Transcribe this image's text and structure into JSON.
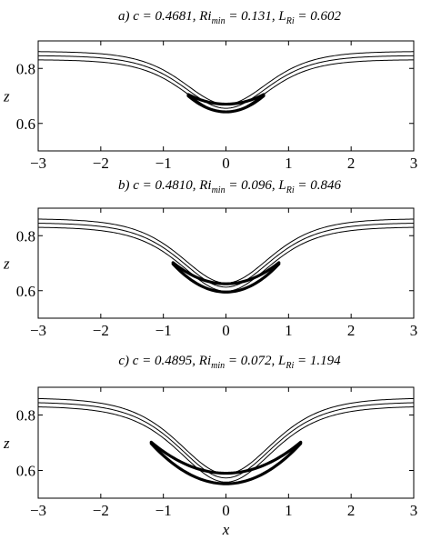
{
  "chart_data": [
    {
      "type": "line",
      "title_parts": [
        "a) c = 0.4681,  Ri",
        "min",
        " = 0.131,  L",
        "Ri",
        " = 0.602"
      ],
      "xlabel": "",
      "ylabel": "z",
      "xlim": [
        -3,
        3
      ],
      "ylim": [
        0.5,
        0.9
      ],
      "xticks": [
        "−3",
        "−2",
        "−1",
        "0",
        "1",
        "2",
        "3"
      ],
      "yticks": [
        "0.6",
        "0.8"
      ],
      "ytick_values": [
        0.6,
        0.8
      ],
      "params": {
        "c": 0.4681,
        "Ri_min": 0.131,
        "L_Ri": 0.602
      },
      "series": [
        {
          "shape": "trough",
          "far": 0.862,
          "min": 0.67,
          "width": 0.9
        },
        {
          "shape": "trough",
          "far": 0.847,
          "min": 0.655,
          "width": 0.9
        },
        {
          "shape": "trough",
          "far": 0.832,
          "min": 0.64,
          "width": 0.9
        },
        {
          "shape": "bold",
          "min": 0.67,
          "edge": 0.705
        },
        {
          "shape": "bold",
          "min": 0.642,
          "edge": 0.7
        }
      ]
    },
    {
      "type": "line",
      "title_parts": [
        "b) c = 0.4810,  Ri",
        "min",
        " = 0.096,  L",
        "Ri",
        " = 0.846"
      ],
      "xlabel": "",
      "ylabel": "z",
      "xlim": [
        -3,
        3
      ],
      "ylim": [
        0.5,
        0.9
      ],
      "xticks": [
        "−3",
        "−2",
        "−1",
        "0",
        "1",
        "2",
        "3"
      ],
      "yticks": [
        "0.6",
        "0.8"
      ],
      "ytick_values": [
        0.6,
        0.8
      ],
      "params": {
        "c": 0.481,
        "Ri_min": 0.096,
        "L_Ri": 0.846
      },
      "series": [
        {
          "shape": "trough",
          "far": 0.862,
          "min": 0.628,
          "width": 0.95
        },
        {
          "shape": "trough",
          "far": 0.847,
          "min": 0.613,
          "width": 0.95
        },
        {
          "shape": "trough",
          "far": 0.832,
          "min": 0.598,
          "width": 0.95
        },
        {
          "shape": "bold",
          "min": 0.625,
          "edge": 0.702
        },
        {
          "shape": "bold",
          "min": 0.595,
          "edge": 0.697
        }
      ]
    },
    {
      "type": "line",
      "title_parts": [
        "c) c = 0.4895,  Ri",
        "min",
        " = 0.072,  L",
        "Ri",
        " = 1.194"
      ],
      "xlabel": "x",
      "ylabel": "z",
      "xlim": [
        -3,
        3
      ],
      "ylim": [
        0.5,
        0.9
      ],
      "xticks": [
        "−3",
        "−2",
        "−1",
        "0",
        "1",
        "2",
        "3"
      ],
      "yticks": [
        "0.6",
        "0.8"
      ],
      "ytick_values": [
        0.6,
        0.8
      ],
      "params": {
        "c": 0.4895,
        "Ri_min": 0.072,
        "L_Ri": 1.194
      },
      "series": [
        {
          "shape": "trough",
          "far": 0.862,
          "min": 0.588,
          "width": 1.0
        },
        {
          "shape": "trough",
          "far": 0.847,
          "min": 0.573,
          "width": 1.0
        },
        {
          "shape": "trough",
          "far": 0.832,
          "min": 0.558,
          "width": 1.0
        },
        {
          "shape": "bold",
          "min": 0.59,
          "edge": 0.702
        },
        {
          "shape": "bold",
          "min": 0.552,
          "edge": 0.697
        }
      ]
    }
  ]
}
